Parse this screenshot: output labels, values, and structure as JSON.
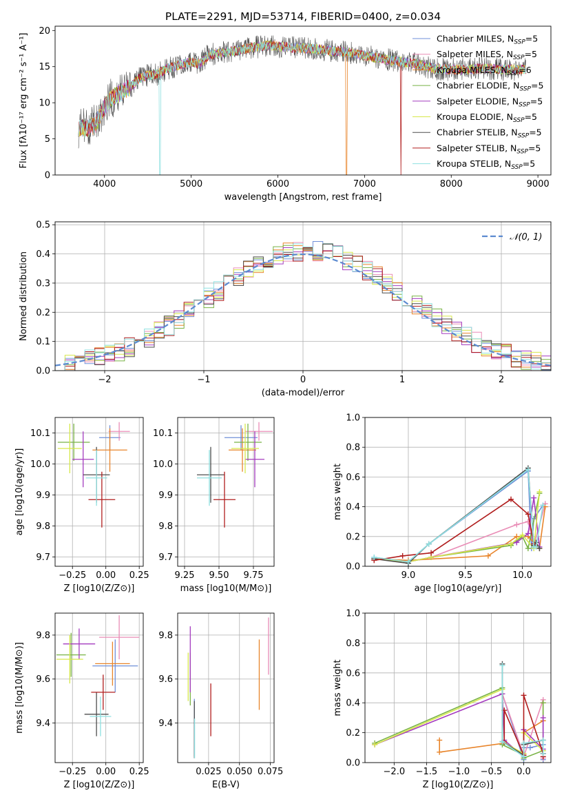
{
  "title": "PLATE=2291, MJD=53714, FIBERID=0400, z=0.034",
  "models": [
    {
      "name": "Chabrier MILES",
      "nssp": "5",
      "color": "#6f8fd8"
    },
    {
      "name": "Salpeter MILES",
      "nssp": "5",
      "color": "#e98cb6"
    },
    {
      "name": "Kroupa MILES",
      "nssp": "6",
      "color": "#e8842a"
    },
    {
      "name": "Chabrier ELODIE",
      "nssp": "5",
      "color": "#78b244"
    },
    {
      "name": "Salpeter ELODIE",
      "nssp": "5",
      "color": "#a43bbf"
    },
    {
      "name": "Kroupa ELODIE",
      "nssp": "5",
      "color": "#d6e84a"
    },
    {
      "name": "Chabrier STELIB",
      "nssp": "5",
      "color": "#4d4d4d"
    },
    {
      "name": "Salpeter STELIB",
      "nssp": "5",
      "color": "#b01c1c"
    },
    {
      "name": "Kroupa STELIB",
      "nssp": "5",
      "color": "#8ee0e0"
    }
  ],
  "chart_data": [
    {
      "id": "spectrum",
      "type": "line",
      "xlabel": "wavelength [Angstrom, rest frame]",
      "ylabel": "Flux [fλ10⁻¹⁷ erg cm⁻² s⁻¹ A⁻¹]",
      "xlim": [
        3430,
        9150
      ],
      "ylim": [
        0,
        20.6
      ],
      "xticks": [
        4000,
        5000,
        6000,
        7000,
        8000,
        9000
      ],
      "yticks": [
        0,
        5,
        10,
        15,
        20
      ],
      "data_range": [
        3700,
        8860
      ],
      "continuum": [
        [
          3700,
          6.5
        ],
        [
          3800,
          6.4
        ],
        [
          3900,
          7.0
        ],
        [
          4000,
          9.5
        ],
        [
          4100,
          10.8
        ],
        [
          4200,
          11.4
        ],
        [
          4300,
          12.2
        ],
        [
          4400,
          13.4
        ],
        [
          4500,
          13.8
        ],
        [
          4600,
          13.9
        ],
        [
          4700,
          14.6
        ],
        [
          4800,
          15.0
        ],
        [
          4900,
          15.4
        ],
        [
          5000,
          15.6
        ],
        [
          5100,
          15.4
        ],
        [
          5200,
          16.6
        ],
        [
          5300,
          16.8
        ],
        [
          5400,
          17.0
        ],
        [
          5500,
          17.2
        ],
        [
          5600,
          17.4
        ],
        [
          5700,
          17.6
        ],
        [
          5800,
          17.8
        ],
        [
          5900,
          18.0
        ],
        [
          6000,
          17.8
        ],
        [
          6200,
          17.6
        ],
        [
          6400,
          17.5
        ],
        [
          6600,
          17.2
        ],
        [
          6800,
          17.0
        ],
        [
          7000,
          16.5
        ],
        [
          7200,
          16.1
        ],
        [
          7400,
          15.7
        ],
        [
          7600,
          15.4
        ],
        [
          7800,
          14.7
        ],
        [
          8000,
          14.6
        ],
        [
          8200,
          14.6
        ],
        [
          8400,
          14.8
        ],
        [
          8600,
          14.6
        ],
        [
          8860,
          14.6
        ]
      ],
      "dropouts": [
        {
          "x": 4640,
          "y": 0,
          "model": 8
        },
        {
          "x": 6790,
          "y": 0,
          "model": 2
        },
        {
          "x": 7420,
          "y": 0,
          "model": 7
        }
      ]
    },
    {
      "id": "residual-histogram",
      "type": "histogram",
      "xlabel": "(data-model)/error",
      "ylabel": "Normed distribution",
      "xlim": [
        -2.5,
        2.5
      ],
      "ylim": [
        0,
        0.51
      ],
      "xticks": [
        -2,
        -1,
        0,
        1,
        2
      ],
      "yticks": [
        0.0,
        0.1,
        0.2,
        0.3,
        0.4,
        0.5
      ],
      "reference_label": "𝒩(0, 1)",
      "reference_color": "#5b8ad0",
      "bin_width": 0.1
    },
    {
      "id": "age-vs-Z",
      "type": "errorbar",
      "xlabel": "Z [log10(Z/Z⊙)]",
      "ylabel": "age  [log10(age/yr)]",
      "xlim": [
        -0.38,
        0.28
      ],
      "ylim": [
        9.67,
        10.15
      ],
      "xticks": [
        -0.25,
        0.0,
        0.25
      ],
      "yticks": [
        9.7,
        9.8,
        9.9,
        10.0,
        10.1
      ],
      "points": [
        {
          "model": 0,
          "x": 0.03,
          "xerr": 0.08,
          "y": 10.085,
          "yerr": 0.04
        },
        {
          "model": 1,
          "x": 0.1,
          "xerr": 0.08,
          "y": 10.105,
          "yerr": 0.03
        },
        {
          "model": 2,
          "x": 0.03,
          "xerr": 0.13,
          "y": 10.045,
          "yerr": 0.07
        },
        {
          "model": 3,
          "x": -0.24,
          "xerr": 0.12,
          "y": 10.07,
          "yerr": 0.06
        },
        {
          "model": 4,
          "x": -0.17,
          "xerr": 0.08,
          "y": 10.015,
          "yerr": 0.09
        },
        {
          "model": 5,
          "x": -0.27,
          "xerr": 0.09,
          "y": 10.05,
          "yerr": 0.08
        },
        {
          "model": 6,
          "x": -0.07,
          "xerr": 0.1,
          "y": 9.965,
          "yerr": 0.09
        },
        {
          "model": 7,
          "x": -0.03,
          "xerr": 0.1,
          "y": 9.885,
          "yerr": 0.09
        },
        {
          "model": 8,
          "x": -0.07,
          "xerr": 0.08,
          "y": 9.955,
          "yerr": 0.09
        }
      ]
    },
    {
      "id": "age-vs-mass",
      "type": "errorbar",
      "xlabel": "mass [log10(M/M⊙)]",
      "ylabel": "",
      "xlim": [
        9.2,
        9.9
      ],
      "ylim": [
        9.67,
        10.15
      ],
      "xticks": [
        9.25,
        9.5,
        9.75
      ],
      "yticks": [
        9.7,
        9.8,
        9.9,
        10.0,
        10.1
      ],
      "points": [
        {
          "model": 0,
          "x": 9.66,
          "xerr": 0.12,
          "y": 10.085,
          "yerr": 0.04
        },
        {
          "model": 1,
          "x": 9.79,
          "xerr": 0.1,
          "y": 10.105,
          "yerr": 0.03
        },
        {
          "model": 2,
          "x": 9.67,
          "xerr": 0.1,
          "y": 10.045,
          "yerr": 0.07
        },
        {
          "model": 3,
          "x": 9.71,
          "xerr": 0.1,
          "y": 10.07,
          "yerr": 0.06
        },
        {
          "model": 4,
          "x": 9.76,
          "xerr": 0.07,
          "y": 10.015,
          "yerr": 0.09
        },
        {
          "model": 5,
          "x": 9.69,
          "xerr": 0.1,
          "y": 10.05,
          "yerr": 0.08
        },
        {
          "model": 6,
          "x": 9.44,
          "xerr": 0.1,
          "y": 9.965,
          "yerr": 0.09
        },
        {
          "model": 7,
          "x": 9.54,
          "xerr": 0.08,
          "y": 9.885,
          "yerr": 0.09
        },
        {
          "model": 8,
          "x": 9.43,
          "xerr": 0.09,
          "y": 9.955,
          "yerr": 0.09
        }
      ]
    },
    {
      "id": "weight-vs-age",
      "type": "line",
      "xlabel": "age  [log10(age/yr)]",
      "ylabel": "mass weight",
      "xlim": [
        8.62,
        10.25
      ],
      "ylim": [
        0,
        1.0
      ],
      "xticks": [
        9.0,
        9.5,
        10.0
      ],
      "yticks": [
        0.0,
        0.2,
        0.4,
        0.6,
        0.8,
        1.0
      ],
      "series": [
        {
          "model": 0,
          "x": [
            8.7,
            9.0,
            9.18,
            10.05,
            10.08,
            10.1,
            10.18
          ],
          "y": [
            0.06,
            0.03,
            0.15,
            0.64,
            0.12,
            0.32,
            0.41
          ]
        },
        {
          "model": 1,
          "x": [
            8.7,
            9.0,
            9.2,
            9.95,
            10.05,
            10.1,
            10.2
          ],
          "y": [
            0.05,
            0.03,
            0.06,
            0.28,
            0.3,
            0.14,
            0.42
          ]
        },
        {
          "model": 2,
          "x": [
            8.7,
            9.0,
            9.7,
            9.95,
            10.05,
            10.15,
            10.2
          ],
          "y": [
            0.05,
            0.04,
            0.07,
            0.2,
            0.2,
            0.12,
            0.4
          ]
        },
        {
          "model": 3,
          "x": [
            8.7,
            9.0,
            9.2,
            9.9,
            10.0,
            10.05,
            10.15
          ],
          "y": [
            0.05,
            0.03,
            0.06,
            0.14,
            0.2,
            0.12,
            0.49
          ]
        },
        {
          "model": 4,
          "x": [
            8.7,
            9.0,
            9.2,
            9.95,
            10.05,
            10.1,
            10.15
          ],
          "y": [
            0.05,
            0.03,
            0.06,
            0.16,
            0.22,
            0.46,
            0.13
          ]
        },
        {
          "model": 5,
          "x": [
            8.7,
            9.0,
            9.2,
            9.9,
            10.0,
            10.1,
            10.15
          ],
          "y": [
            0.05,
            0.03,
            0.06,
            0.15,
            0.21,
            0.12,
            0.5
          ]
        },
        {
          "model": 6,
          "x": [
            8.7,
            9.0,
            9.18,
            10.05,
            10.1,
            10.12,
            10.15
          ],
          "y": [
            0.05,
            0.02,
            0.15,
            0.66,
            0.14,
            0.16,
            0.12
          ]
        },
        {
          "model": 7,
          "x": [
            8.7,
            8.95,
            9.2,
            9.9,
            10.05,
            10.1
          ],
          "y": [
            0.04,
            0.07,
            0.09,
            0.45,
            0.35,
            0.15
          ]
        },
        {
          "model": 8,
          "x": [
            8.7,
            9.0,
            9.18,
            10.05,
            10.1,
            10.12,
            10.18
          ],
          "y": [
            0.06,
            0.03,
            0.15,
            0.65,
            0.13,
            0.13,
            0.41
          ]
        }
      ]
    },
    {
      "id": "mass-vs-Z",
      "type": "errorbar",
      "xlabel": "Z [log10(Z/Z⊙)]",
      "ylabel": "mass [log10(M/M⊙)]",
      "xlim": [
        -0.38,
        0.28
      ],
      "ylim": [
        9.22,
        9.9
      ],
      "xticks": [
        -0.25,
        0.0,
        0.25
      ],
      "yticks": [
        9.4,
        9.6,
        9.8
      ],
      "points": [
        {
          "model": 0,
          "x": 0.07,
          "xerr": 0.17,
          "y": 9.66,
          "yerr": 0.12
        },
        {
          "model": 1,
          "x": 0.1,
          "xerr": 0.15,
          "y": 9.79,
          "yerr": 0.1
        },
        {
          "model": 2,
          "x": 0.05,
          "xerr": 0.13,
          "y": 9.67,
          "yerr": 0.1
        },
        {
          "model": 3,
          "x": -0.26,
          "xerr": 0.11,
          "y": 9.71,
          "yerr": 0.1
        },
        {
          "model": 4,
          "x": -0.2,
          "xerr": 0.12,
          "y": 9.76,
          "yerr": 0.07
        },
        {
          "model": 5,
          "x": -0.27,
          "xerr": 0.1,
          "y": 9.69,
          "yerr": 0.11
        },
        {
          "model": 6,
          "x": -0.07,
          "xerr": 0.09,
          "y": 9.44,
          "yerr": 0.1
        },
        {
          "model": 7,
          "x": -0.02,
          "xerr": 0.09,
          "y": 9.54,
          "yerr": 0.08
        },
        {
          "model": 8,
          "x": -0.04,
          "xerr": 0.08,
          "y": 9.43,
          "yerr": 0.09
        }
      ]
    },
    {
      "id": "mass-vs-ebv",
      "type": "errorbar",
      "xlabel": "E(B-V)",
      "ylabel": "",
      "xlim": [
        0.0,
        0.078
      ],
      "ylim": [
        9.22,
        9.9
      ],
      "xticks": [
        0.025,
        0.05,
        0.075
      ],
      "yticks": [
        9.4,
        9.6,
        9.8
      ],
      "points": [
        {
          "model": 0,
          "x": 0.0135,
          "xerr": 0,
          "y": 9.38,
          "yerr": 0.13
        },
        {
          "model": 1,
          "x": 0.0735,
          "xerr": 0,
          "y": 9.75,
          "yerr": 0.13
        },
        {
          "model": 2,
          "x": 0.066,
          "xerr": 0,
          "y": 9.62,
          "yerr": 0.16
        },
        {
          "model": 3,
          "x": 0.0102,
          "xerr": 0,
          "y": 9.6,
          "yerr": 0.12
        },
        {
          "model": 4,
          "x": 0.0102,
          "xerr": 0,
          "y": 9.69,
          "yerr": 0.15
        },
        {
          "model": 5,
          "x": 0.0085,
          "xerr": 0,
          "y": 9.61,
          "yerr": 0.11
        },
        {
          "model": 6,
          "x": 0.0135,
          "xerr": 0,
          "y": 9.37,
          "yerr": 0.13
        },
        {
          "model": 7,
          "x": 0.0268,
          "xerr": 0,
          "y": 9.46,
          "yerr": 0.12
        },
        {
          "model": 8,
          "x": 0.0137,
          "xerr": 0,
          "y": 9.33,
          "yerr": 0.09
        }
      ]
    },
    {
      "id": "weight-vs-Z",
      "type": "line",
      "xlabel": "Z [log10(Z/Z⊙)]",
      "ylabel": "mass weight",
      "xlim": [
        -2.45,
        0.42
      ],
      "ylim": [
        0,
        1.0
      ],
      "xticks": [
        -2.0,
        -1.5,
        -1.0,
        -0.5,
        0.0
      ],
      "yticks": [
        0.0,
        0.2,
        0.4,
        0.6,
        0.8,
        1.0
      ],
      "series": [
        {
          "model": 0,
          "x": [
            -0.33,
            0.0,
            0.0,
            0.1,
            0.3,
            0.3
          ],
          "y": [
            0.46,
            0.02,
            0.1,
            0.1,
            0.12,
            0.02
          ]
        },
        {
          "model": 1,
          "x": [
            -0.33,
            0.0,
            0.0,
            0.3,
            0.3
          ],
          "y": [
            0.46,
            0.05,
            0.04,
            0.42,
            0.03
          ]
        },
        {
          "model": 2,
          "x": [
            -1.3,
            -1.3,
            -0.3,
            0.0,
            0.0,
            0.3,
            0.3
          ],
          "y": [
            0.15,
            0.07,
            0.13,
            0.06,
            0.2,
            0.28,
            0.4
          ]
        },
        {
          "model": 3,
          "x": [
            -2.3,
            -0.33,
            -0.33,
            0.0,
            0.0,
            0.3,
            0.3
          ],
          "y": [
            0.13,
            0.5,
            0.12,
            0.05,
            0.03,
            0.08,
            0.4
          ]
        },
        {
          "model": 4,
          "x": [
            -2.3,
            -0.33,
            -0.3,
            0.0,
            0.0,
            0.3,
            0.3
          ],
          "y": [
            0.12,
            0.46,
            0.15,
            0.04,
            0.22,
            0.09,
            0.3
          ]
        },
        {
          "model": 5,
          "x": [
            -2.3,
            -0.33,
            -0.33,
            0.0,
            0.0,
            0.3
          ],
          "y": [
            0.12,
            0.49,
            0.14,
            0.06,
            0.2,
            0.08
          ]
        },
        {
          "model": 6,
          "x": [
            -0.33,
            -0.33,
            0.0,
            0.0,
            0.3,
            0.3
          ],
          "y": [
            0.66,
            0.14,
            0.05,
            0.12,
            0.15,
            0.06
          ]
        },
        {
          "model": 7,
          "x": [
            -0.3,
            -0.3,
            0.0,
            0.0,
            0.3,
            0.3
          ],
          "y": [
            0.14,
            0.35,
            0.05,
            0.45,
            0.06,
            0.04
          ]
        },
        {
          "model": 8,
          "x": [
            -0.33,
            -0.33,
            0.0,
            0.0,
            0.3,
            0.3
          ],
          "y": [
            0.65,
            0.14,
            0.04,
            0.13,
            0.15,
            0.06
          ]
        }
      ]
    }
  ]
}
